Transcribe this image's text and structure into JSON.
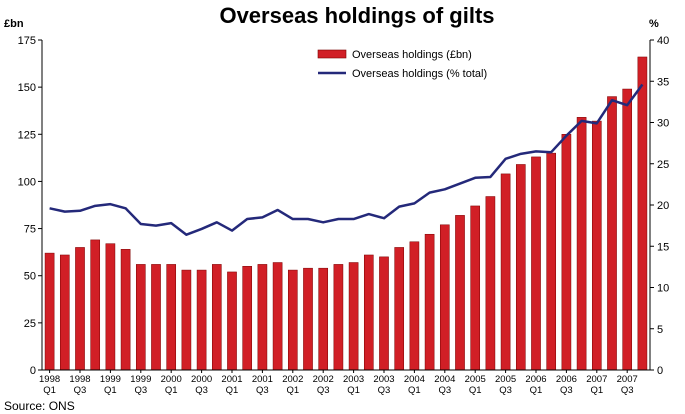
{
  "chart_data": {
    "type": "bar+line",
    "title": "Overseas holdings of gilts",
    "source": "Source: ONS",
    "left_axis": {
      "unit": "£bn",
      "range": [
        0,
        175
      ],
      "ticks": [
        "0",
        "25",
        "50",
        "75",
        "100",
        "125",
        "150",
        "175"
      ]
    },
    "right_axis": {
      "unit": "%",
      "range": [
        0,
        40
      ],
      "ticks": [
        "0",
        "5",
        "10",
        "15",
        "20",
        "25",
        "30",
        "35",
        "40"
      ]
    },
    "x_tick_labels": [
      {
        "year": "1998",
        "q": "Q1"
      },
      {
        "year": "1998",
        "q": "Q3"
      },
      {
        "year": "1999",
        "q": "Q1"
      },
      {
        "year": "1999",
        "q": "Q3"
      },
      {
        "year": "2000",
        "q": "Q1"
      },
      {
        "year": "2000",
        "q": "Q3"
      },
      {
        "year": "2001",
        "q": "Q1"
      },
      {
        "year": "2001",
        "q": "Q3"
      },
      {
        "year": "2002",
        "q": "Q1"
      },
      {
        "year": "2002",
        "q": "Q3"
      },
      {
        "year": "2003",
        "q": "Q1"
      },
      {
        "year": "2003",
        "q": "Q3"
      },
      {
        "year": "2004",
        "q": "Q1"
      },
      {
        "year": "2004",
        "q": "Q3"
      },
      {
        "year": "2005",
        "q": "Q1"
      },
      {
        "year": "2005",
        "q": "Q3"
      },
      {
        "year": "2006",
        "q": "Q1"
      },
      {
        "year": "2006",
        "q": "Q3"
      },
      {
        "year": "2007",
        "q": "Q1"
      },
      {
        "year": "2007",
        "q": "Q3"
      }
    ],
    "categories": [
      "1998 Q1",
      "1998 Q2",
      "1998 Q3",
      "1998 Q4",
      "1999 Q1",
      "1999 Q2",
      "1999 Q3",
      "1999 Q4",
      "2000 Q1",
      "2000 Q2",
      "2000 Q3",
      "2000 Q4",
      "2001 Q1",
      "2001 Q2",
      "2001 Q3",
      "2001 Q4",
      "2002 Q1",
      "2002 Q2",
      "2002 Q3",
      "2002 Q4",
      "2003 Q1",
      "2003 Q2",
      "2003 Q3",
      "2003 Q4",
      "2004 Q1",
      "2004 Q2",
      "2004 Q3",
      "2004 Q4",
      "2005 Q1",
      "2005 Q2",
      "2005 Q3",
      "2005 Q4",
      "2006 Q1",
      "2006 Q2",
      "2006 Q3",
      "2006 Q4",
      "2007 Q1",
      "2007 Q2",
      "2007 Q3",
      "2007 Q4"
    ],
    "series": [
      {
        "name": "Overseas holdings (£bn)",
        "type": "bar",
        "axis": "left",
        "color": "#d11f26",
        "values": [
          62,
          61,
          65,
          69,
          67,
          64,
          56,
          56,
          56,
          53,
          53,
          56,
          52,
          55,
          56,
          57,
          53,
          54,
          54,
          56,
          57,
          61,
          60,
          65,
          68,
          72,
          77,
          82,
          87,
          92,
          104,
          109,
          113,
          115,
          125,
          134,
          132,
          145,
          149,
          166
        ]
      },
      {
        "name": "Overseas holdings (% total)",
        "type": "line",
        "axis": "right",
        "color": "#24297a",
        "values": [
          19.6,
          19.2,
          19.3,
          19.9,
          20.1,
          19.6,
          17.7,
          17.5,
          17.8,
          16.4,
          17.1,
          17.9,
          16.9,
          18.3,
          18.5,
          19.4,
          18.3,
          18.3,
          17.9,
          18.3,
          18.3,
          18.9,
          18.4,
          19.8,
          20.2,
          21.5,
          21.9,
          22.6,
          23.3,
          23.4,
          25.6,
          26.2,
          26.5,
          26.4,
          28.4,
          30.2,
          29.9,
          32.7,
          32.1,
          34.6
        ]
      }
    ],
    "legend_position": "top-center",
    "grid": false
  }
}
